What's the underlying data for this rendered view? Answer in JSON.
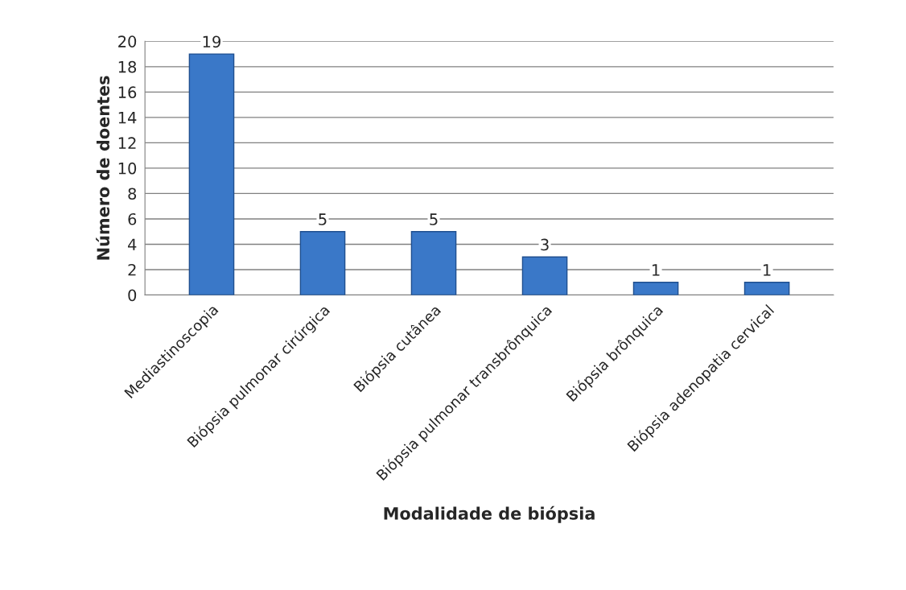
{
  "chart_data": {
    "type": "bar",
    "categories": [
      "Mediastinoscopia",
      "Biópsia pulmonar cirúrgica",
      "Biópsia cutânea",
      "Biópsia pulmonar transbrônquica",
      "Biópsia brônquica",
      "Biópsia adenopatia cervical"
    ],
    "values": [
      19,
      5,
      5,
      3,
      1,
      1
    ],
    "color": "#3a78c8",
    "xlabel": "Modalidade de biópsia",
    "ylabel": "Número de doentes",
    "ylim": [
      0,
      20
    ],
    "yticks": [
      0,
      2,
      4,
      6,
      8,
      10,
      12,
      14,
      16,
      18,
      20
    ],
    "grid": "y",
    "data_labels": true
  }
}
